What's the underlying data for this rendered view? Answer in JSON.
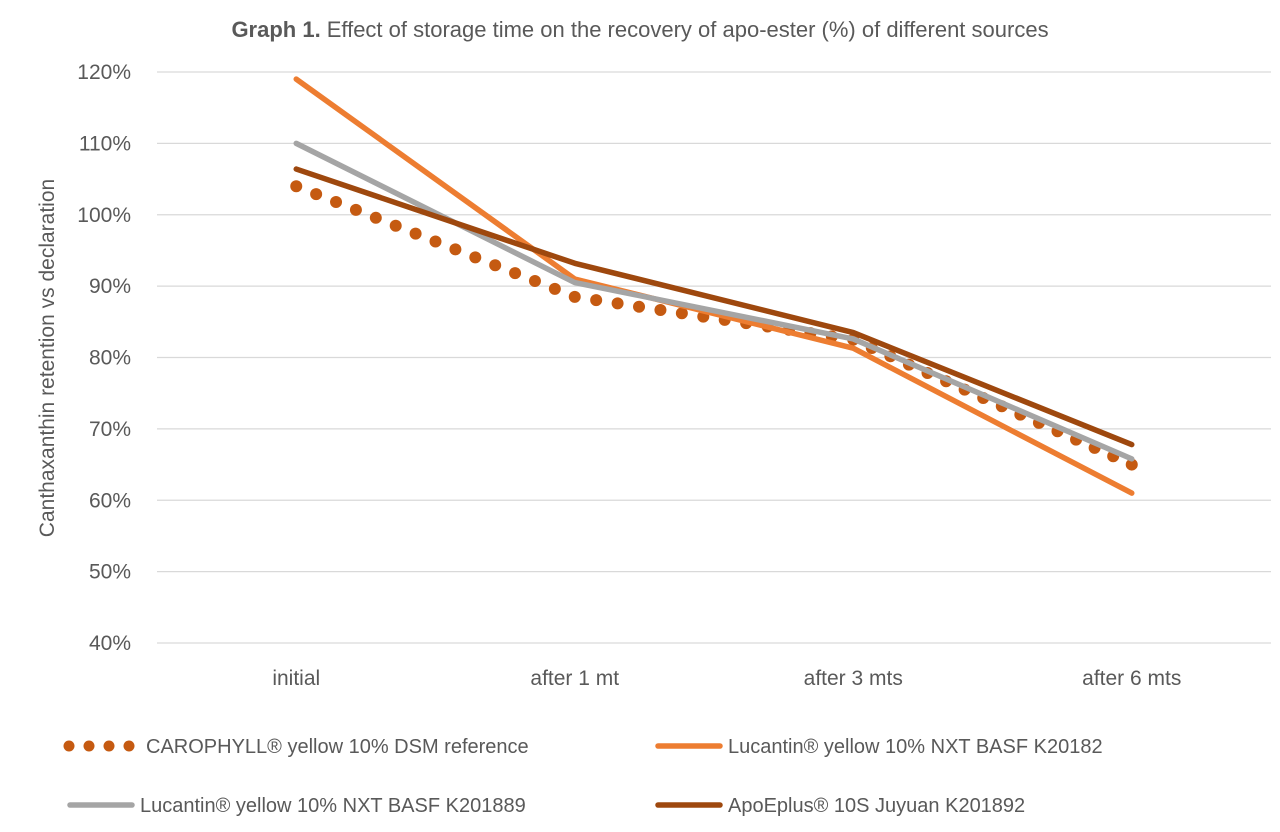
{
  "chart_data": {
    "type": "line",
    "title_bold": "Graph 1.",
    "title": "Effect of storage time on the recovery of apo-ester (%) of different sources",
    "xlabel": "",
    "ylabel": "Canthaxanthin retention vs declaration",
    "categories": [
      "initial",
      "after 1 mt",
      "after 3 mts",
      "after 6 mts"
    ],
    "ylim": [
      40,
      120
    ],
    "yticks": [
      40,
      50,
      60,
      70,
      80,
      90,
      100,
      110,
      120
    ],
    "ytick_format": "%",
    "grid": true,
    "legend_position": "bottom",
    "series": [
      {
        "name": "CAROPHYLL® yellow 10% DSM reference",
        "color": "#C55A11",
        "style": "dotted",
        "values": [
          104.0,
          88.5,
          82.5,
          65.0
        ]
      },
      {
        "name": "Lucantin® yellow 10% NXT BASF K20182",
        "color": "#ED7D31",
        "style": "solid",
        "values": [
          119.0,
          91.0,
          81.3,
          61.0
        ]
      },
      {
        "name": "Lucantin® yellow 10% NXT BASF K201889",
        "color": "#A5A5A5",
        "style": "solid",
        "values": [
          110.0,
          90.5,
          82.6,
          65.8
        ]
      },
      {
        "name": "ApoEplus® 10S Juyuan K201892",
        "color": "#9E480E",
        "style": "solid",
        "values": [
          106.4,
          93.2,
          83.5,
          67.8
        ]
      }
    ]
  }
}
